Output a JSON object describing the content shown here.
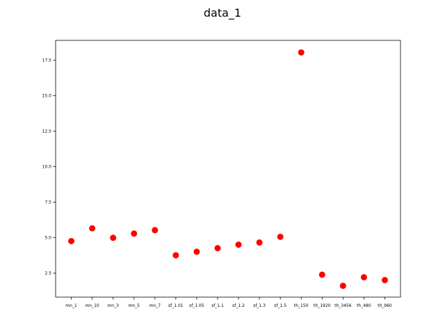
{
  "chart_data": {
    "type": "scatter",
    "title": "data_1",
    "xlabel": "",
    "ylabel": "",
    "categories": [
      "mn_1",
      "mn_10",
      "mn_3",
      "mn_5",
      "mn_7",
      "sf_1.01",
      "sf_1.05",
      "sf_1.1",
      "sf_1.2",
      "sf_1.3",
      "sf_1.5",
      "th_150",
      "th_1920",
      "th_3456",
      "th_480",
      "th_960"
    ],
    "values": [
      4.75,
      5.65,
      4.98,
      5.28,
      5.52,
      3.75,
      4.0,
      4.25,
      4.5,
      4.65,
      5.05,
      18.05,
      2.38,
      1.6,
      2.2,
      2.0
    ],
    "ylim": [
      0.8,
      18.9
    ],
    "yticks": [
      2.5,
      5.0,
      7.5,
      10.0,
      12.5,
      15.0,
      17.5
    ],
    "grid": false,
    "marker_color": "#ff0000"
  }
}
